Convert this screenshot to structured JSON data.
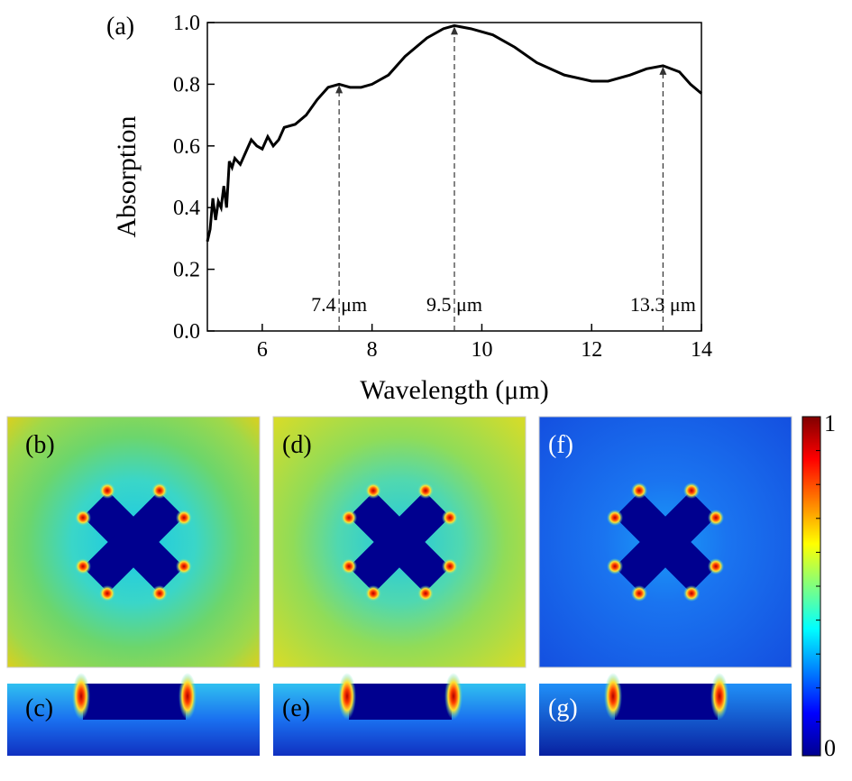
{
  "chart_data": [
    {
      "type": "line",
      "panel_label": "(a)",
      "xlabel": "Wavelength (μm)",
      "ylabel": "Absorption",
      "xlim": [
        5,
        14
      ],
      "ylim": [
        0,
        1.0
      ],
      "xticks": [
        6,
        8,
        10,
        12,
        14
      ],
      "yticks": [
        {
          "value": 0,
          "label": "0.0"
        },
        {
          "value": 0.2,
          "label": "0.2"
        },
        {
          "value": 0.4,
          "label": "0.4"
        },
        {
          "value": 0.6,
          "label": "0.6"
        },
        {
          "value": 0.8,
          "label": "0.8"
        },
        {
          "value": 1.0,
          "label": "1.0"
        }
      ],
      "series": [
        {
          "color": "#000000",
          "x": [
            5.0,
            5.05,
            5.1,
            5.15,
            5.2,
            5.25,
            5.3,
            5.35,
            5.4,
            5.45,
            5.5,
            5.6,
            5.7,
            5.8,
            5.9,
            6.0,
            6.1,
            6.2,
            6.3,
            6.4,
            6.6,
            6.8,
            7.0,
            7.2,
            7.4,
            7.6,
            7.8,
            8.0,
            8.3,
            8.6,
            9.0,
            9.3,
            9.5,
            9.8,
            10.2,
            10.6,
            11.0,
            11.5,
            12.0,
            12.3,
            12.7,
            13.0,
            13.3,
            13.6,
            13.8,
            14.0
          ],
          "values": [
            0.29,
            0.33,
            0.43,
            0.36,
            0.42,
            0.4,
            0.47,
            0.4,
            0.55,
            0.53,
            0.56,
            0.54,
            0.58,
            0.62,
            0.6,
            0.59,
            0.63,
            0.6,
            0.62,
            0.66,
            0.67,
            0.7,
            0.75,
            0.79,
            0.8,
            0.79,
            0.79,
            0.8,
            0.83,
            0.89,
            0.95,
            0.98,
            0.99,
            0.98,
            0.96,
            0.92,
            0.87,
            0.83,
            0.81,
            0.81,
            0.83,
            0.85,
            0.86,
            0.84,
            0.8,
            0.77
          ]
        }
      ],
      "annotations": [
        {
          "x": 7.4,
          "y": 0.8,
          "text": "7.4 μm"
        },
        {
          "x": 9.5,
          "y": 0.99,
          "text": "9.5 μm"
        },
        {
          "x": 13.3,
          "y": 0.86,
          "text": "13.3 μm"
        }
      ]
    },
    {
      "type": "heatmap",
      "panel_labels": [
        "(b)",
        "(d)",
        "(f)",
        "(c)",
        "(e)",
        "(g)"
      ],
      "zlim": [
        0,
        1
      ],
      "zticks": [
        0,
        1
      ]
    }
  ]
}
